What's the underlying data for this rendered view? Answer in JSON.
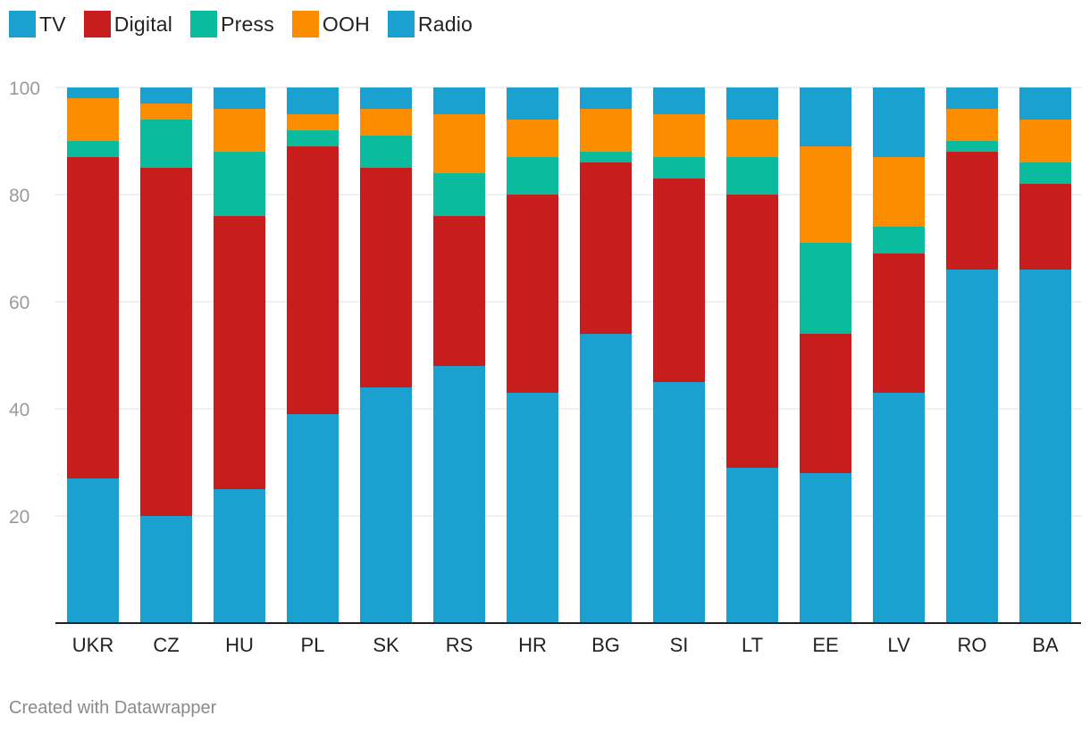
{
  "chart_data": {
    "type": "bar",
    "stacked": true,
    "categories": [
      "UKR",
      "CZ",
      "HU",
      "PL",
      "SK",
      "RS",
      "HR",
      "BG",
      "SI",
      "LT",
      "EE",
      "LV",
      "RO",
      "BA"
    ],
    "series": [
      {
        "name": "TV",
        "color": "#1aa1cf",
        "values": [
          27,
          20,
          25,
          39,
          44,
          48,
          43,
          54,
          45,
          29,
          28,
          43,
          66,
          66
        ]
      },
      {
        "name": "Digital",
        "color": "#c71d1d",
        "values": [
          60,
          65,
          51,
          50,
          41,
          28,
          37,
          32,
          38,
          51,
          26,
          26,
          22,
          16
        ]
      },
      {
        "name": "Press",
        "color": "#0abb9e",
        "values": [
          3,
          9,
          12,
          3,
          6,
          8,
          7,
          2,
          4,
          7,
          17,
          5,
          2,
          4
        ]
      },
      {
        "name": "OOH",
        "color": "#fc8c00",
        "values": [
          8,
          3,
          8,
          3,
          5,
          11,
          7,
          8,
          8,
          7,
          18,
          13,
          6,
          8
        ]
      },
      {
        "name": "Radio",
        "color": "#1aa1cf",
        "values": [
          2,
          3,
          4,
          5,
          4,
          5,
          6,
          4,
          5,
          6,
          11,
          13,
          4,
          6
        ]
      }
    ],
    "yticks": [
      20,
      40,
      60,
      80,
      100
    ],
    "ylim": [
      0,
      100
    ],
    "grid": true,
    "legend_position": "top-left"
  },
  "credit": "Created with Datawrapper"
}
